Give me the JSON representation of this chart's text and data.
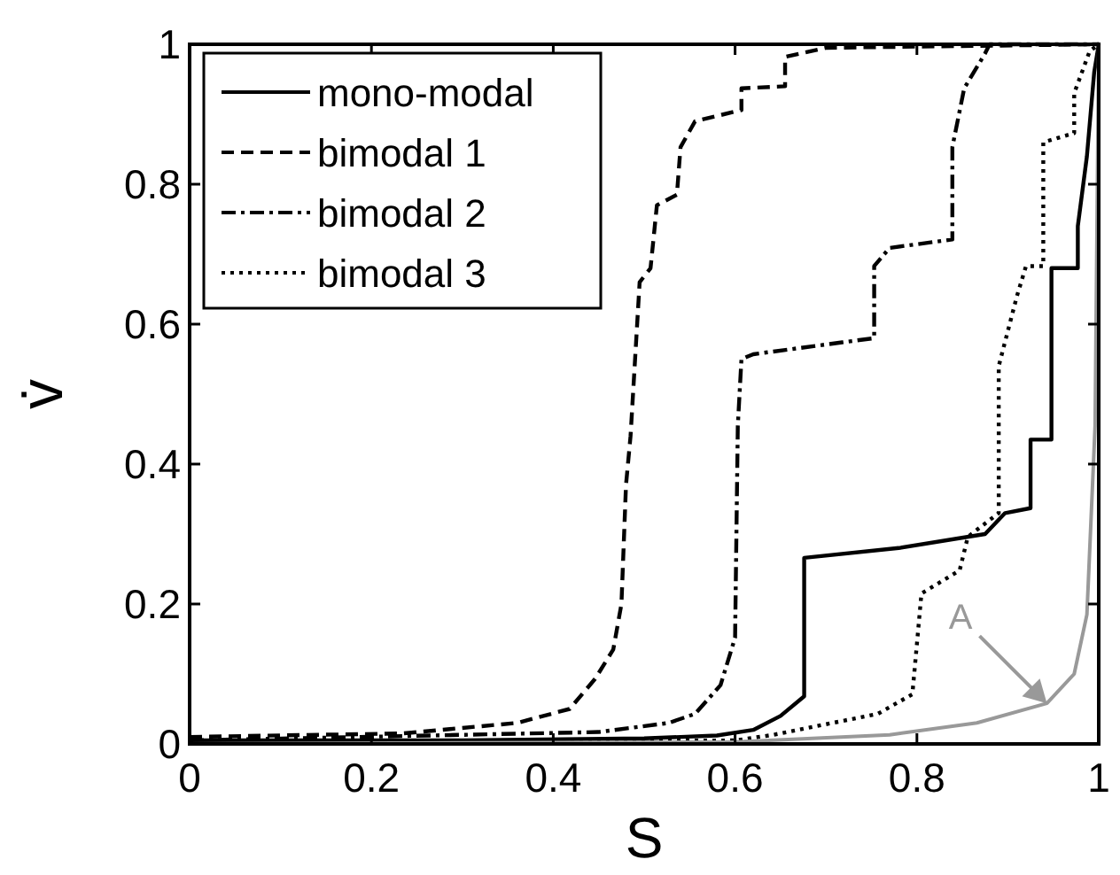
{
  "chart_data": {
    "type": "line",
    "xlabel": "S",
    "ylabel": "v̇",
    "xlim": [
      0,
      1
    ],
    "ylim": [
      0,
      1
    ],
    "xticks": [
      0,
      0.2,
      0.4,
      0.6,
      0.8,
      1
    ],
    "yticks": [
      0,
      0.2,
      0.4,
      0.6,
      0.8,
      1
    ],
    "grid": false,
    "legend": "top left",
    "marker": "none",
    "series": [
      {
        "name": "mono-modal",
        "color": "#000000",
        "line_style": "solid",
        "x": [
          0,
          0.3,
          0.5,
          0.58,
          0.62,
          0.65,
          0.676,
          0.676,
          0.78,
          0.875,
          0.897,
          0.925,
          0.925,
          0.948,
          0.948,
          0.977,
          0.977,
          0.987,
          0.995,
          1
        ],
        "values": [
          0.005,
          0.005,
          0.008,
          0.012,
          0.02,
          0.04,
          0.068,
          0.266,
          0.28,
          0.3,
          0.33,
          0.337,
          0.435,
          0.435,
          0.68,
          0.68,
          0.74,
          0.84,
          0.96,
          1
        ]
      },
      {
        "name": "bimodal 1",
        "color": "#000000",
        "line_style": "dashed",
        "x": [
          0,
          0.234,
          0.36,
          0.418,
          0.446,
          0.466,
          0.475,
          0.48,
          0.485,
          0.495,
          0.507,
          0.514,
          0.536,
          0.54,
          0.556,
          0.607,
          0.607,
          0.655,
          0.655,
          0.7,
          1
        ],
        "values": [
          0.01,
          0.015,
          0.03,
          0.05,
          0.093,
          0.135,
          0.2,
          0.37,
          0.44,
          0.66,
          0.68,
          0.77,
          0.785,
          0.853,
          0.89,
          0.906,
          0.937,
          0.94,
          0.982,
          0.995,
          1
        ]
      },
      {
        "name": "bimodal 2",
        "color": "#000000",
        "line_style": "dashdot",
        "x": [
          0,
          0.45,
          0.527,
          0.556,
          0.584,
          0.6,
          0.603,
          0.607,
          0.62,
          0.718,
          0.753,
          0.753,
          0.77,
          0.839,
          0.839,
          0.852,
          0.875,
          0.88,
          1
        ],
        "values": [
          0.005,
          0.017,
          0.03,
          0.043,
          0.084,
          0.152,
          0.455,
          0.55,
          0.557,
          0.574,
          0.58,
          0.683,
          0.709,
          0.721,
          0.853,
          0.937,
          0.987,
          1,
          1
        ]
      },
      {
        "name": "bimodal 3",
        "color": "#000000",
        "line_style": "dotted",
        "x": [
          0,
          0.6,
          0.642,
          0.757,
          0.795,
          0.805,
          0.847,
          0.856,
          0.89,
          0.89,
          0.91,
          0.92,
          0.939,
          0.939,
          0.973,
          0.973,
          0.99,
          1
        ],
        "values": [
          0.003,
          0.005,
          0.013,
          0.043,
          0.071,
          0.215,
          0.248,
          0.296,
          0.33,
          0.54,
          0.64,
          0.683,
          0.683,
          0.86,
          0.873,
          0.93,
          0.99,
          1
        ]
      },
      {
        "color": "#999999",
        "line_style": "solid",
        "x": [
          0,
          0.6,
          0.77,
          0.866,
          0.943,
          0.973,
          0.987,
          0.996,
          1
        ],
        "values": [
          0,
          0.003,
          0.013,
          0.03,
          0.058,
          0.1,
          0.185,
          0.455,
          1
        ]
      }
    ],
    "annotations": [
      {
        "text": "A",
        "x": 0.943,
        "y": 0.058
      }
    ]
  }
}
